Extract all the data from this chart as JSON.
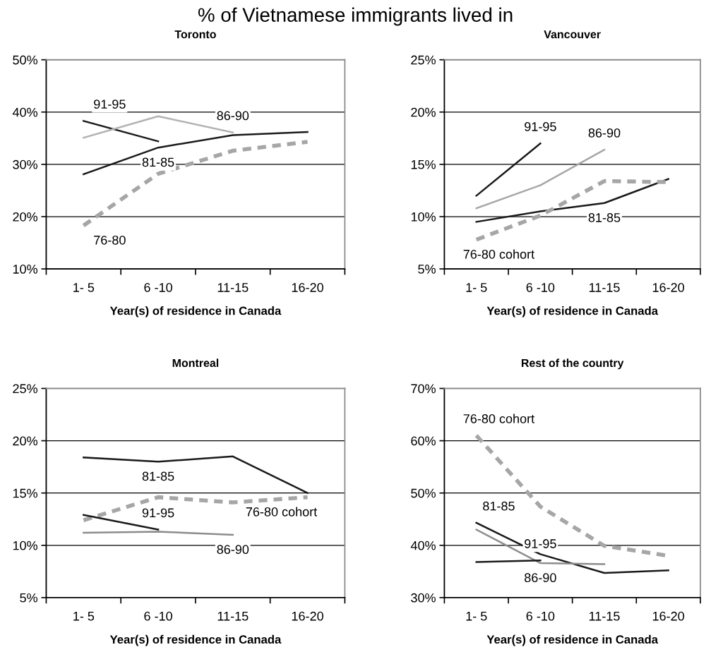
{
  "chart_data": [
    {
      "type": "line",
      "title": "Toronto",
      "xlabel": "Year(s) of residence in Canada",
      "categories": [
        "1- 5",
        "6 -10",
        "11-15",
        "16-20"
      ],
      "ylim": [
        10,
        50
      ],
      "yticks": [
        {
          "value": 10,
          "label": "10%"
        },
        {
          "value": 20,
          "label": "20%"
        },
        {
          "value": 30,
          "label": "30%"
        },
        {
          "value": 40,
          "label": "40%"
        },
        {
          "value": 50,
          "label": "50%"
        }
      ],
      "grid": "y",
      "legend": false,
      "marker": "none",
      "series": [
        {
          "name": "91-95",
          "color": "#1a1a1a",
          "line_style": "solid",
          "values": [
            38.3,
            34.4,
            null,
            null
          ]
        },
        {
          "name": "86-90",
          "color": "#b3b3b3",
          "line_style": "solid",
          "values": [
            35.1,
            39.2,
            36.1,
            null
          ]
        },
        {
          "name": "81-85",
          "color": "#1a1a1a",
          "line_style": "solid",
          "values": [
            28.1,
            33.2,
            35.6,
            36.2
          ]
        },
        {
          "name": "76-80",
          "color": "#a6a6a6",
          "line_style": "dashed",
          "values": [
            18.3,
            28.2,
            32.6,
            34.3
          ]
        }
      ],
      "annotations": [
        "% of Vietnamese immigrants lived in"
      ]
    },
    {
      "type": "line",
      "title": "Vancouver",
      "xlabel": "Year(s) of residence in Canada",
      "categories": [
        "1- 5",
        "6 -10",
        "11-15",
        "16-20"
      ],
      "ylim": [
        5,
        25
      ],
      "yticks": [
        {
          "value": 5,
          "label": "5%"
        },
        {
          "value": 10,
          "label": "10%"
        },
        {
          "value": 15,
          "label": "15%"
        },
        {
          "value": 20,
          "label": "20%"
        },
        {
          "value": 25,
          "label": "25%"
        }
      ],
      "grid": "y",
      "legend": false,
      "marker": "none",
      "series": [
        {
          "name": "91-95",
          "color": "#1a1a1a",
          "line_style": "solid",
          "values": [
            12.0,
            17.0,
            null,
            null
          ]
        },
        {
          "name": "86-90",
          "color": "#a6a6a6",
          "line_style": "solid",
          "values": [
            10.8,
            13.0,
            16.4,
            null
          ]
        },
        {
          "name": "81-85",
          "color": "#1a1a1a",
          "line_style": "solid",
          "values": [
            9.5,
            10.5,
            11.3,
            13.6
          ]
        },
        {
          "name": "76-80 cohort",
          "color": "#a6a6a6",
          "line_style": "dashed",
          "values": [
            7.8,
            10.1,
            13.4,
            13.3
          ]
        }
      ]
    },
    {
      "type": "line",
      "title": "Montreal",
      "xlabel": "Year(s) of residence in Canada",
      "categories": [
        "1- 5",
        "6 -10",
        "11-15",
        "16-20"
      ],
      "ylim": [
        5,
        25
      ],
      "yticks": [
        {
          "value": 5,
          "label": "5%"
        },
        {
          "value": 10,
          "label": "10%"
        },
        {
          "value": 15,
          "label": "15%"
        },
        {
          "value": 20,
          "label": "20%"
        },
        {
          "value": 25,
          "label": "25%"
        }
      ],
      "grid": "y",
      "legend": false,
      "marker": "none",
      "series": [
        {
          "name": "81-85",
          "color": "#1a1a1a",
          "line_style": "solid",
          "values": [
            18.4,
            18.0,
            18.5,
            15.0
          ]
        },
        {
          "name": "76-80 cohort",
          "color": "#a6a6a6",
          "line_style": "dashed",
          "values": [
            12.4,
            14.6,
            14.1,
            14.6
          ]
        },
        {
          "name": "91-95",
          "color": "#1a1a1a",
          "line_style": "solid",
          "values": [
            12.9,
            11.5,
            null,
            null
          ]
        },
        {
          "name": "86-90",
          "color": "#8c8c8c",
          "line_style": "solid",
          "values": [
            11.2,
            11.3,
            11.0,
            null
          ]
        }
      ]
    },
    {
      "type": "line",
      "title": "Rest of the country",
      "xlabel": "Year(s) of residence in Canada",
      "categories": [
        "1- 5",
        "6 -10",
        "11-15",
        "16-20"
      ],
      "ylim": [
        30,
        70
      ],
      "yticks": [
        {
          "value": 30,
          "label": "30%"
        },
        {
          "value": 40,
          "label": "40%"
        },
        {
          "value": 50,
          "label": "50%"
        },
        {
          "value": 60,
          "label": "60%"
        },
        {
          "value": 70,
          "label": "70%"
        }
      ],
      "grid": "y",
      "legend": false,
      "marker": "none",
      "series": [
        {
          "name": "76-80 cohort",
          "color": "#a6a6a6",
          "line_style": "dashed",
          "values": [
            61.0,
            47.4,
            39.9,
            38.0
          ]
        },
        {
          "name": "81-85",
          "color": "#1a1a1a",
          "line_style": "solid",
          "values": [
            44.3,
            38.3,
            34.7,
            35.2
          ]
        },
        {
          "name": "86-90",
          "color": "#8c8c8c",
          "line_style": "solid",
          "values": [
            43.0,
            36.6,
            36.4,
            null
          ]
        },
        {
          "name": "91-95",
          "color": "#1a1a1a",
          "line_style": "solid",
          "values": [
            36.8,
            37.1,
            null,
            null
          ]
        }
      ]
    }
  ]
}
